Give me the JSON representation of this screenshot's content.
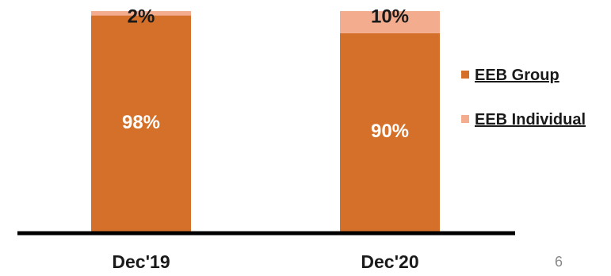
{
  "chart_data": {
    "type": "bar",
    "stacked": true,
    "percent_stacked": true,
    "categories": [
      "Dec'19",
      "Dec'20"
    ],
    "series": [
      {
        "name": "EEB Group",
        "values": [
          98,
          90
        ],
        "labels": [
          "98%",
          "90%"
        ],
        "color": "#D4702A",
        "label_color": "#ffffff"
      },
      {
        "name": "EEB Individual",
        "values": [
          2,
          10
        ],
        "labels": [
          "2%",
          "10%"
        ],
        "color": "#F3AC8E",
        "label_color": "#1a1a1a"
      }
    ],
    "ylim": [
      0,
      100
    ],
    "grid": false,
    "legend_position": "right"
  },
  "page_number": "6"
}
